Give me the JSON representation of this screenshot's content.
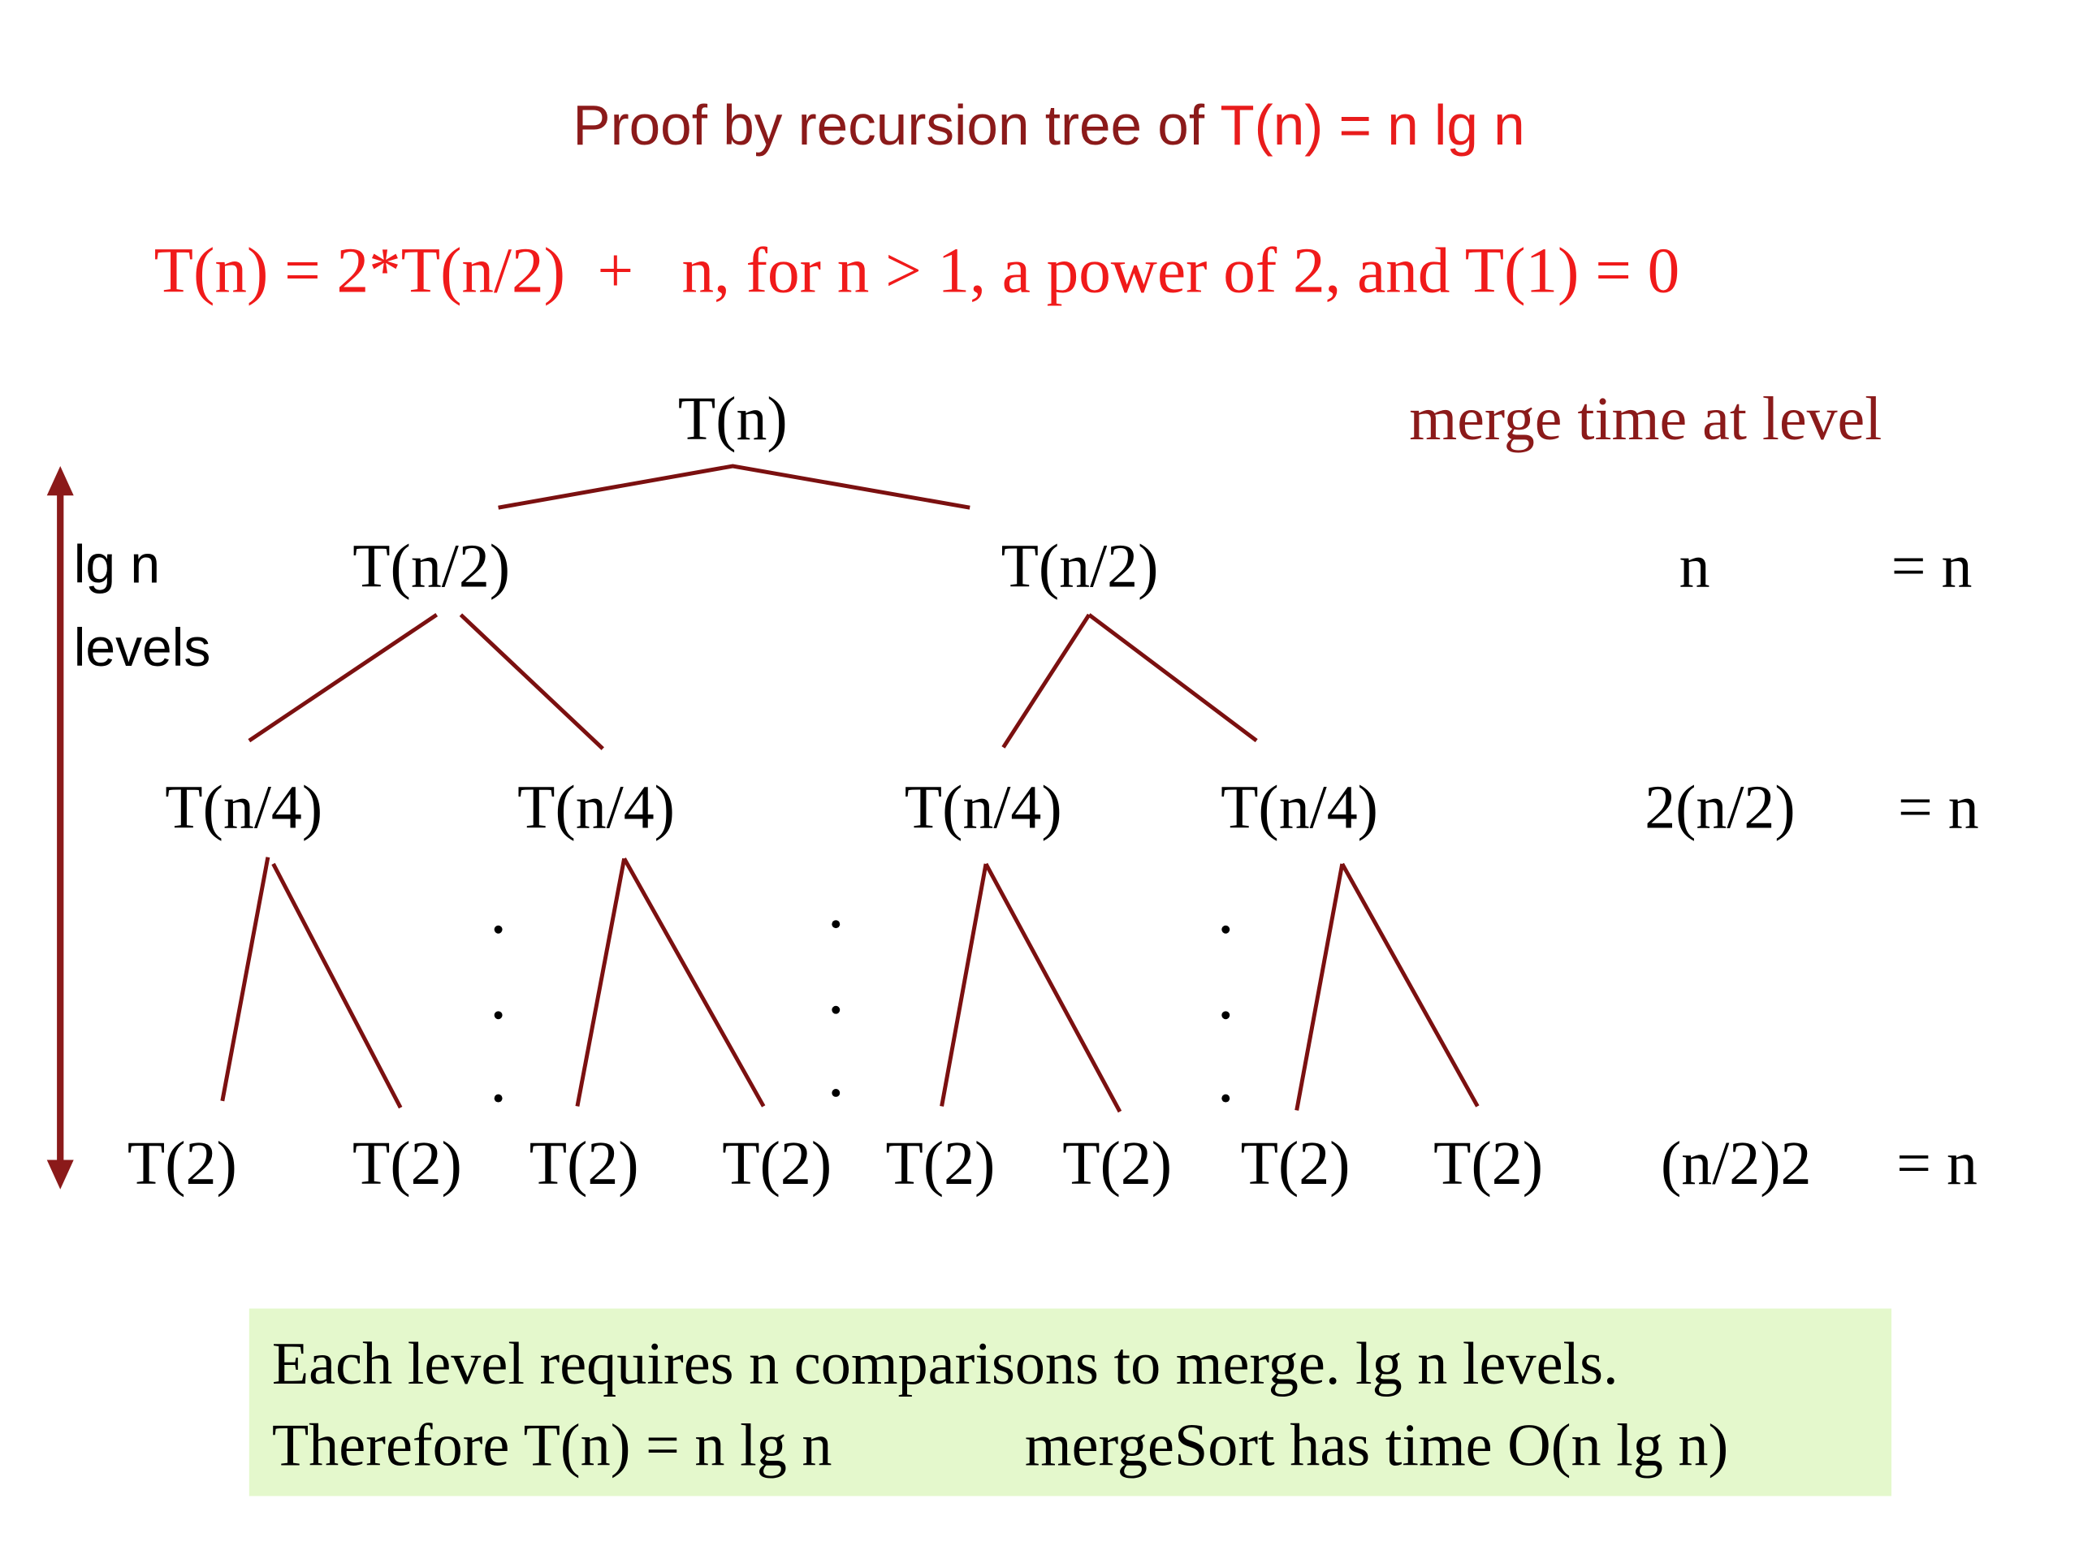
{
  "title": {
    "prefix": "Proof by recursion tree of ",
    "formula": "T(n) = n lg n"
  },
  "recurrence": "T(n) = 2*T(n/2)  +   n, for n > 1, a power of 2, and T(1) = 0",
  "merge_header": "merge time at level",
  "levels_label": {
    "line1": "lg n",
    "line2": "levels"
  },
  "tree": {
    "root": "T(n)",
    "level1": [
      "T(n/2)",
      "T(n/2)"
    ],
    "level2": [
      "T(n/4)",
      "T(n/4)",
      "T(n/4)",
      "T(n/4)"
    ],
    "leaves": [
      "T(2)",
      "T(2)",
      "T(2)",
      "T(2)",
      "T(2)",
      "T(2)",
      "T(2)",
      "T(2)"
    ]
  },
  "merge_rows": [
    {
      "cost": "n",
      "total": "= n"
    },
    {
      "cost": "2(n/2)",
      "total": "= n"
    },
    {
      "cost": "(n/2)2",
      "total": "= n"
    }
  ],
  "conclusion": {
    "line1": "Each level requires n comparisons to merge. lg n levels.",
    "line2a": "Therefore T(n) = n lg n",
    "line2b": "mergeSort has time O(n lg n)"
  }
}
